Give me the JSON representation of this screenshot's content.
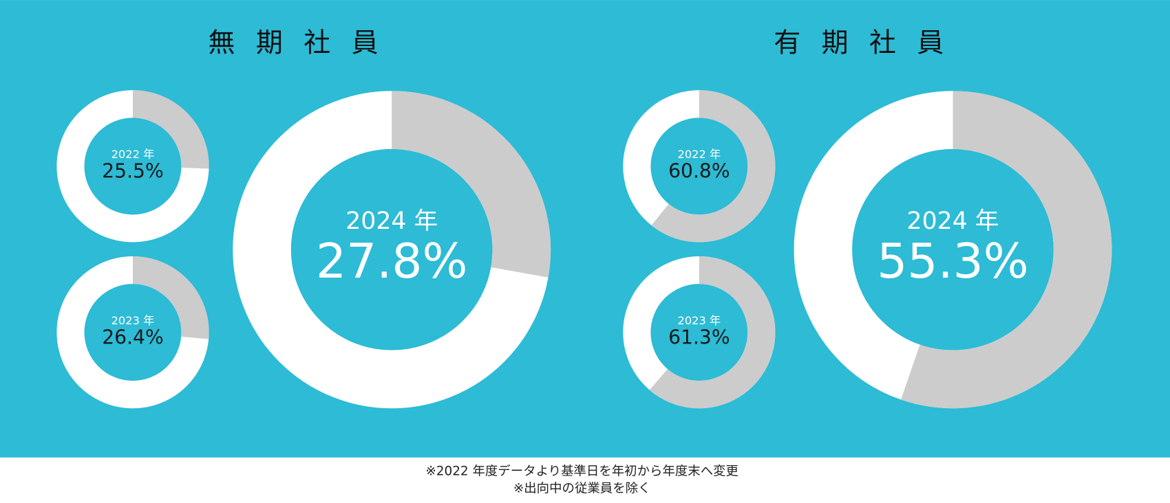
{
  "chart_data": [
    {
      "type": "donut",
      "title": "無期社員",
      "categories": [
        "2022 年",
        "2023 年",
        "2024 年"
      ],
      "values": [
        25.5,
        26.4,
        27.8
      ],
      "value_labels": [
        "25.5%",
        "26.4%",
        "27.8%"
      ],
      "color": "#cccccc",
      "base_color": "#ffffff"
    },
    {
      "type": "donut",
      "title": "有期社員",
      "categories": [
        "2022 年",
        "2023 年",
        "2024 年"
      ],
      "values": [
        60.8,
        61.3,
        55.3
      ],
      "value_labels": [
        "60.8%",
        "61.3%",
        "55.3%"
      ],
      "color": "#cccccc",
      "base_color": "#ffffff"
    }
  ],
  "notes": [
    "※2022 年度データより基準日を年初から年度末へ変更",
    "※出向中の従業員を除く"
  ]
}
